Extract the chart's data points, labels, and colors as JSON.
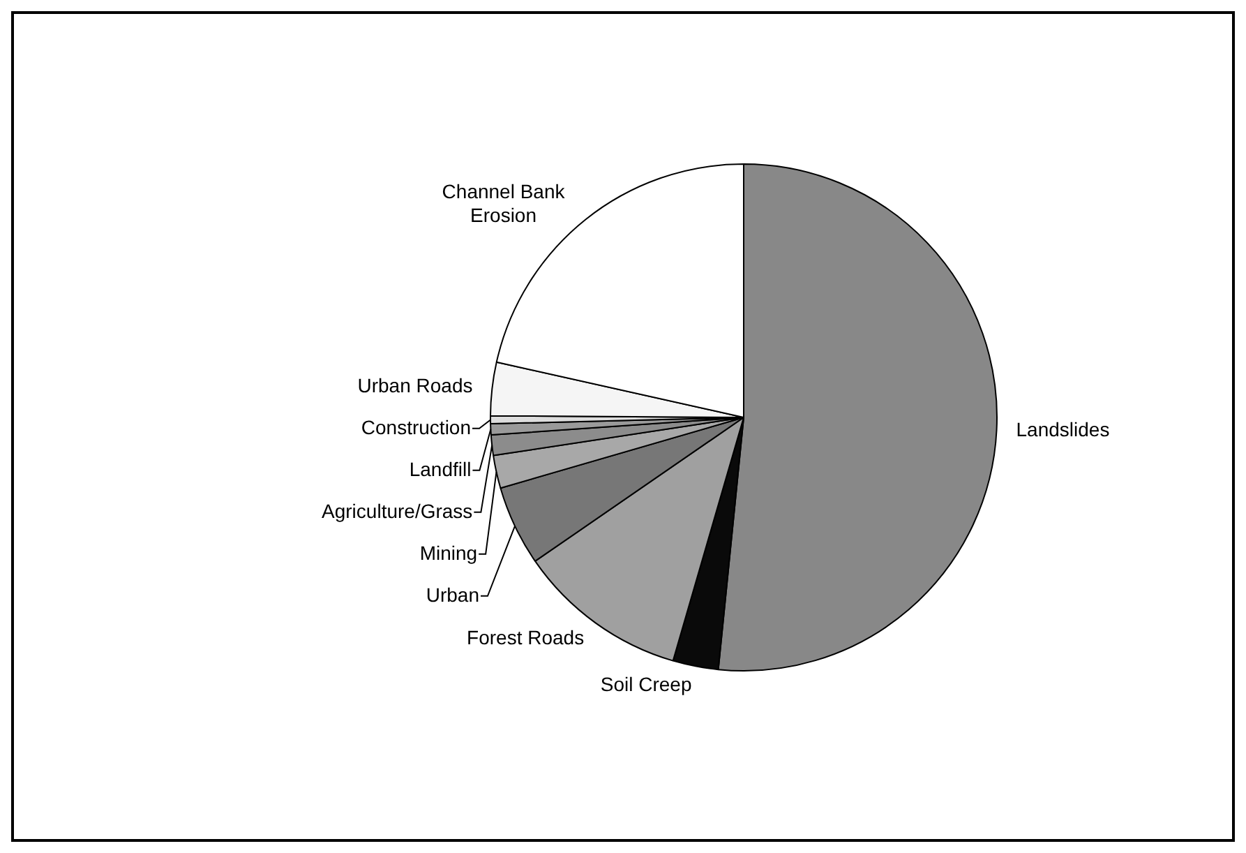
{
  "chart_data": {
    "type": "pie",
    "categories": [
      "Landslides",
      "Soil Creep",
      "Forest Roads",
      "Urban",
      "Mining",
      "Agriculture/Grass",
      "Landfill",
      "Construction",
      "Urban Roads",
      "Channel Bank Erosion"
    ],
    "values": [
      51.6,
      2.9,
      10.9,
      5.1,
      2.1,
      1.3,
      0.7,
      0.5,
      3.4,
      21.5
    ],
    "colors": [
      "#888888",
      "#0a0a0a",
      "#a0a0a0",
      "#777777",
      "#a8a8a8",
      "#8c8c8c",
      "#9a9a9a",
      "#dddddd",
      "#f5f5f5",
      "#ffffff"
    ],
    "legend": false
  }
}
